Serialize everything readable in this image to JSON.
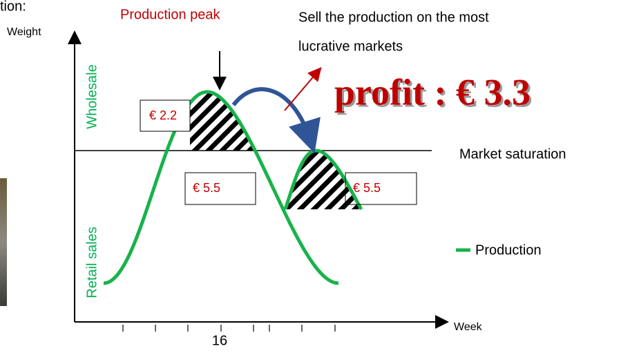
{
  "header": {
    "cut_text": "tion:"
  },
  "axes": {
    "y_label": "Weight",
    "x_label": "Week",
    "x_tick_label": "16"
  },
  "annotations": {
    "peak": "Production peak",
    "sell": [
      "Sell the production on the most",
      "lucrative markets"
    ],
    "profit": "profit : € 3.3",
    "saturation": "Market saturation"
  },
  "zones": {
    "upper": "Wholesale",
    "lower": "Retail sales"
  },
  "boxes": [
    "€ 2.2",
    "€ 5.5",
    "€ 5.5"
  ],
  "legend": {
    "label": "Production"
  }
}
